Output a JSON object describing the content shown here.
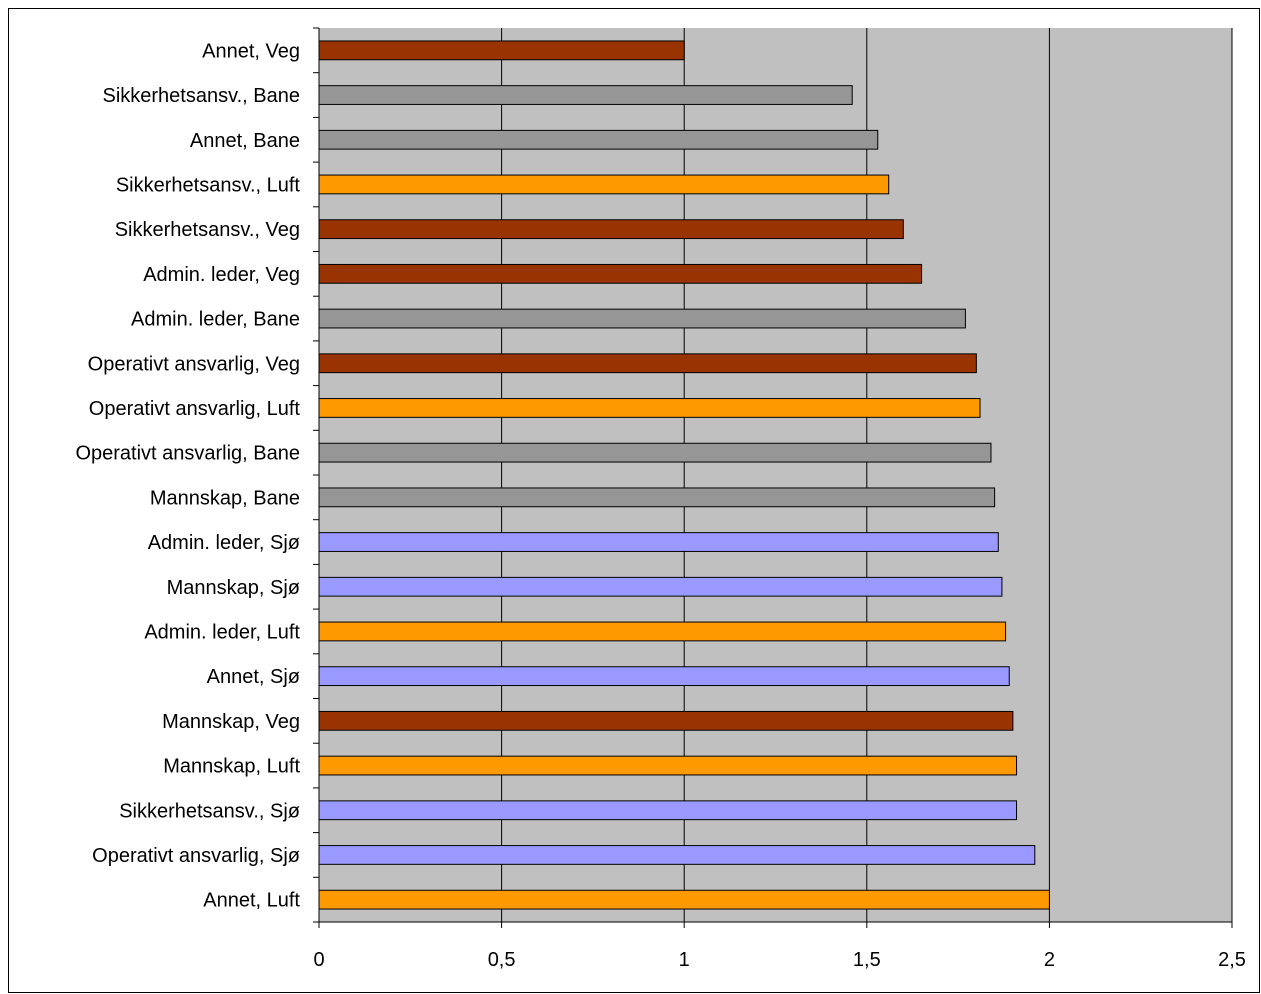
{
  "chart_data": {
    "type": "bar",
    "orientation": "horizontal",
    "categories": [
      "Annet, Veg",
      "Sikkerhetsansv., Bane",
      "Annet, Bane",
      "Sikkerhetsansv., Luft",
      "Sikkerhetsansv., Veg",
      "Admin. leder, Veg",
      "Admin. leder, Bane",
      "Operativt ansvarlig, Veg",
      "Operativt ansvarlig, Luft",
      "Operativt ansvarlig, Bane",
      "Mannskap, Bane",
      "Admin. leder, Sjø",
      "Mannskap, Sjø",
      "Admin. leder, Luft",
      "Annet, Sjø",
      "Mannskap, Veg",
      "Mannskap, Luft",
      "Sikkerhetsansv., Sjø",
      "Operativt ansvarlig, Sjø",
      "Annet, Luft"
    ],
    "values": [
      1.0,
      1.46,
      1.53,
      1.56,
      1.6,
      1.65,
      1.77,
      1.8,
      1.81,
      1.84,
      1.85,
      1.86,
      1.87,
      1.88,
      1.89,
      1.9,
      1.91,
      1.91,
      1.96,
      2.0
    ],
    "groups": [
      "Veg",
      "Bane",
      "Bane",
      "Luft",
      "Veg",
      "Veg",
      "Bane",
      "Veg",
      "Luft",
      "Bane",
      "Bane",
      "Sjø",
      "Sjø",
      "Luft",
      "Sjø",
      "Veg",
      "Luft",
      "Sjø",
      "Sjø",
      "Luft"
    ],
    "group_colors": {
      "Veg": "#993300",
      "Bane": "#969696",
      "Luft": "#ff9900",
      "Sjø": "#9999ff"
    },
    "xlim": [
      0,
      2.5
    ],
    "xticks": [
      0,
      0.5,
      1,
      1.5,
      2,
      2.5
    ],
    "xtick_labels": [
      "0",
      "0,5",
      "1",
      "1,5",
      "2",
      "2,5"
    ],
    "grid": "vertical",
    "plot_background": "#c0c0c0",
    "title": "",
    "xlabel": "",
    "ylabel": ""
  }
}
